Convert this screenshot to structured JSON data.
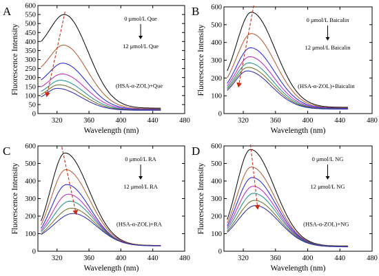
{
  "figure": {
    "series_colors": [
      "#000000",
      "#b5532e",
      "#1c1ce0",
      "#c020c0",
      "#1a8a8a",
      "#6a6a1e",
      "#2424a8",
      "#7a1e9e",
      "#3a3ad0"
    ],
    "arrow_color": "#cc2a10",
    "xlabel": "Wavelength (nm)",
    "ylabel": "Fluorescence Intensity",
    "xticks": [
      "320",
      "360",
      "400",
      "440",
      "480"
    ]
  },
  "chart_data": [
    {
      "type": "line",
      "panel": "A",
      "xlim": [
        296,
        480
      ],
      "ylim": [
        0,
        600
      ],
      "yticks": [
        "0",
        "50",
        "100",
        "150",
        "200",
        "250",
        "300",
        "350",
        "400",
        "450",
        "500",
        "550",
        "600"
      ],
      "annotation_top": "0 μmol/L Que",
      "annotation_bottom": "12 μmol/L Que",
      "system_label": "(HSA-α-ZOL)+Que",
      "peaks": [
        550,
        380,
        280,
        220,
        185,
        160,
        140
      ],
      "peak_x": [
        329,
        328,
        327,
        326,
        324,
        322,
        320
      ],
      "start_values": [
        400,
        258,
        187,
        148,
        123,
        106,
        93
      ],
      "end_values": [
        30,
        26,
        23,
        21,
        20,
        19,
        18
      ],
      "arrow": {
        "from": [
          330,
          565
        ],
        "to": [
          307,
          95
        ]
      }
    },
    {
      "type": "line",
      "panel": "B",
      "xlim": [
        296,
        480
      ],
      "ylim": [
        0,
        600
      ],
      "yticks": [
        "0",
        "100",
        "200",
        "300",
        "400",
        "500",
        "600"
      ],
      "annotation_top": "0 μmol/L Baicalin",
      "annotation_bottom": "12 μmol/L Baicalin",
      "system_label": "(HSA-α-ZOL)+Baicalin",
      "peaks": [
        570,
        450,
        370,
        320,
        285,
        260,
        240
      ],
      "peak_x": [
        330,
        330,
        329,
        328,
        327,
        326,
        325
      ],
      "start_values": [
        240,
        200,
        170,
        156,
        146,
        138,
        130
      ],
      "end_values": [
        35,
        32,
        30,
        28,
        27,
        26,
        25
      ],
      "arrow": {
        "from": [
          333,
          620
        ],
        "to": [
          314,
          150
        ]
      }
    },
    {
      "type": "line",
      "panel": "C",
      "xlim": [
        296,
        480
      ],
      "ylim": [
        0,
        600
      ],
      "yticks": [
        "0",
        "100",
        "200",
        "300",
        "400",
        "500",
        "600"
      ],
      "annotation_top": "0 μmol/L RA",
      "annotation_bottom": "12 μmol/L RA",
      "system_label": "(HSA-α-ZOL)+RA",
      "peaks": [
        560,
        465,
        380,
        325,
        285,
        245,
        215
      ],
      "peak_x": [
        330,
        331,
        332,
        334,
        336,
        338,
        340
      ],
      "start_values": [
        172,
        150,
        130,
        118,
        110,
        100,
        95
      ],
      "end_values": [
        33,
        33,
        32,
        32,
        31,
        31,
        30
      ],
      "arrow": {
        "from": [
          326,
          595
        ],
        "to": [
          344,
          210
        ]
      }
    },
    {
      "type": "line",
      "panel": "D",
      "xlim": [
        296,
        480
      ],
      "ylim": [
        0,
        600
      ],
      "yticks": [
        "0",
        "100",
        "200",
        "300",
        "400",
        "500",
        "600"
      ],
      "annotation_top": "0 μmol/L NG",
      "annotation_bottom": "12 μmol/L NG",
      "system_label": "(HSA-α-ZOL)+NG",
      "peaks": [
        580,
        480,
        420,
        370,
        330,
        290,
        260
      ],
      "peak_x": [
        329,
        330,
        331,
        332,
        333,
        334,
        335
      ],
      "start_values": [
        180,
        160,
        145,
        135,
        125,
        115,
        108
      ],
      "end_values": [
        30,
        29,
        28,
        27,
        27,
        26,
        25
      ],
      "arrow": {
        "from": [
          329,
          610
        ],
        "to": [
          338,
          240
        ]
      }
    }
  ]
}
